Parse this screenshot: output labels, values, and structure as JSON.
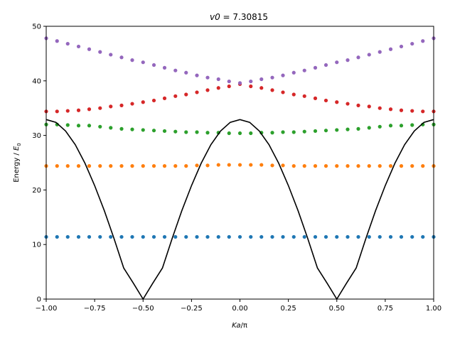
{
  "chart_data": {
    "type": "scatter",
    "title": "v0 = 7.30815",
    "title_parts": {
      "var": "v0",
      "rest": " = 7.30815"
    },
    "xlabel": "Ka/π",
    "xlabel_parts": {
      "ka": "Ka",
      "rest": "/π"
    },
    "ylabel": "Energy / E0",
    "ylabel_parts": {
      "main": "Energy / ",
      "E": "E",
      "sub": "0"
    },
    "xlim": [
      -1.0,
      1.0
    ],
    "ylim": [
      0,
      50
    ],
    "xticks": [
      -1.0,
      -0.75,
      -0.5,
      -0.25,
      0.0,
      0.25,
      0.5,
      0.75,
      1.0
    ],
    "xtick_labels": [
      "−1.00",
      "−0.75",
      "−0.50",
      "−0.25",
      "0.00",
      "0.25",
      "0.50",
      "0.75",
      "1.00"
    ],
    "yticks": [
      0,
      10,
      20,
      30,
      40,
      50
    ],
    "ytick_labels": [
      "0",
      "10",
      "20",
      "30",
      "40",
      "50"
    ],
    "grid": false,
    "series": [
      {
        "color": "#1f77b4",
        "points": [
          [
            -1.0,
            11.4
          ],
          [
            -0.944,
            11.4
          ],
          [
            -0.889,
            11.4
          ],
          [
            -0.833,
            11.4
          ],
          [
            -0.778,
            11.4
          ],
          [
            -0.722,
            11.4
          ],
          [
            -0.667,
            11.4
          ],
          [
            -0.611,
            11.4
          ],
          [
            -0.556,
            11.4
          ],
          [
            -0.5,
            11.4
          ],
          [
            -0.444,
            11.4
          ],
          [
            -0.389,
            11.4
          ],
          [
            -0.333,
            11.4
          ],
          [
            -0.278,
            11.4
          ],
          [
            -0.222,
            11.4
          ],
          [
            -0.167,
            11.4
          ],
          [
            -0.111,
            11.4
          ],
          [
            -0.056,
            11.4
          ],
          [
            0.0,
            11.4
          ],
          [
            0.056,
            11.4
          ],
          [
            0.111,
            11.4
          ],
          [
            0.167,
            11.4
          ],
          [
            0.222,
            11.4
          ],
          [
            0.278,
            11.4
          ],
          [
            0.333,
            11.4
          ],
          [
            0.389,
            11.4
          ],
          [
            0.444,
            11.4
          ],
          [
            0.5,
            11.4
          ],
          [
            0.556,
            11.4
          ],
          [
            0.611,
            11.4
          ],
          [
            0.667,
            11.4
          ],
          [
            0.722,
            11.4
          ],
          [
            0.778,
            11.4
          ],
          [
            0.833,
            11.4
          ],
          [
            0.889,
            11.4
          ],
          [
            0.944,
            11.4
          ],
          [
            1.0,
            11.4
          ]
        ]
      },
      {
        "color": "#ff7f0e",
        "points": [
          [
            -1.0,
            24.4
          ],
          [
            -0.944,
            24.4
          ],
          [
            -0.889,
            24.4
          ],
          [
            -0.833,
            24.4
          ],
          [
            -0.778,
            24.4
          ],
          [
            -0.722,
            24.4
          ],
          [
            -0.667,
            24.4
          ],
          [
            -0.611,
            24.4
          ],
          [
            -0.556,
            24.4
          ],
          [
            -0.5,
            24.4
          ],
          [
            -0.444,
            24.4
          ],
          [
            -0.389,
            24.4
          ],
          [
            -0.333,
            24.4
          ],
          [
            -0.278,
            24.4
          ],
          [
            -0.222,
            24.5
          ],
          [
            -0.167,
            24.5
          ],
          [
            -0.111,
            24.6
          ],
          [
            -0.056,
            24.6
          ],
          [
            0.0,
            24.6
          ],
          [
            0.056,
            24.6
          ],
          [
            0.111,
            24.6
          ],
          [
            0.167,
            24.5
          ],
          [
            0.222,
            24.5
          ],
          [
            0.278,
            24.4
          ],
          [
            0.333,
            24.4
          ],
          [
            0.389,
            24.4
          ],
          [
            0.444,
            24.4
          ],
          [
            0.5,
            24.4
          ],
          [
            0.556,
            24.4
          ],
          [
            0.611,
            24.4
          ],
          [
            0.667,
            24.4
          ],
          [
            0.722,
            24.4
          ],
          [
            0.778,
            24.4
          ],
          [
            0.833,
            24.4
          ],
          [
            0.889,
            24.4
          ],
          [
            0.944,
            24.4
          ],
          [
            1.0,
            24.4
          ]
        ]
      },
      {
        "color": "#2ca02c",
        "points": [
          [
            -1.0,
            32.0
          ],
          [
            -0.944,
            32.0
          ],
          [
            -0.889,
            31.9
          ],
          [
            -0.833,
            31.8
          ],
          [
            -0.778,
            31.8
          ],
          [
            -0.722,
            31.6
          ],
          [
            -0.667,
            31.4
          ],
          [
            -0.611,
            31.2
          ],
          [
            -0.556,
            31.1
          ],
          [
            -0.5,
            31.0
          ],
          [
            -0.444,
            30.9
          ],
          [
            -0.389,
            30.8
          ],
          [
            -0.333,
            30.7
          ],
          [
            -0.278,
            30.6
          ],
          [
            -0.222,
            30.6
          ],
          [
            -0.167,
            30.5
          ],
          [
            -0.111,
            30.5
          ],
          [
            -0.056,
            30.4
          ],
          [
            0.0,
            30.4
          ],
          [
            0.056,
            30.4
          ],
          [
            0.111,
            30.5
          ],
          [
            0.167,
            30.5
          ],
          [
            0.222,
            30.6
          ],
          [
            0.278,
            30.6
          ],
          [
            0.333,
            30.7
          ],
          [
            0.389,
            30.8
          ],
          [
            0.444,
            30.9
          ],
          [
            0.5,
            31.0
          ],
          [
            0.556,
            31.1
          ],
          [
            0.611,
            31.2
          ],
          [
            0.667,
            31.4
          ],
          [
            0.722,
            31.6
          ],
          [
            0.778,
            31.8
          ],
          [
            0.833,
            31.8
          ],
          [
            0.889,
            31.9
          ],
          [
            0.944,
            32.0
          ],
          [
            1.0,
            32.0
          ]
        ]
      },
      {
        "color": "#d62728",
        "points": [
          [
            -1.0,
            34.4
          ],
          [
            -0.944,
            34.4
          ],
          [
            -0.889,
            34.5
          ],
          [
            -0.833,
            34.6
          ],
          [
            -0.778,
            34.8
          ],
          [
            -0.722,
            35.0
          ],
          [
            -0.667,
            35.3
          ],
          [
            -0.611,
            35.5
          ],
          [
            -0.556,
            35.8
          ],
          [
            -0.5,
            36.1
          ],
          [
            -0.444,
            36.4
          ],
          [
            -0.389,
            36.8
          ],
          [
            -0.333,
            37.2
          ],
          [
            -0.278,
            37.5
          ],
          [
            -0.222,
            37.9
          ],
          [
            -0.167,
            38.3
          ],
          [
            -0.111,
            38.7
          ],
          [
            -0.056,
            39.0
          ],
          [
            0.0,
            39.4
          ],
          [
            0.056,
            39.0
          ],
          [
            0.111,
            38.7
          ],
          [
            0.167,
            38.3
          ],
          [
            0.222,
            37.9
          ],
          [
            0.278,
            37.5
          ],
          [
            0.333,
            37.2
          ],
          [
            0.389,
            36.8
          ],
          [
            0.444,
            36.4
          ],
          [
            0.5,
            36.1
          ],
          [
            0.556,
            35.8
          ],
          [
            0.611,
            35.5
          ],
          [
            0.667,
            35.3
          ],
          [
            0.722,
            35.0
          ],
          [
            0.778,
            34.8
          ],
          [
            0.833,
            34.6
          ],
          [
            0.889,
            34.5
          ],
          [
            0.944,
            34.4
          ],
          [
            1.0,
            34.4
          ]
        ]
      },
      {
        "color": "#9467bd",
        "points": [
          [
            -1.0,
            47.8
          ],
          [
            -0.944,
            47.3
          ],
          [
            -0.889,
            46.8
          ],
          [
            -0.833,
            46.3
          ],
          [
            -0.778,
            45.8
          ],
          [
            -0.722,
            45.3
          ],
          [
            -0.667,
            44.8
          ],
          [
            -0.611,
            44.3
          ],
          [
            -0.556,
            43.8
          ],
          [
            -0.5,
            43.4
          ],
          [
            -0.444,
            42.9
          ],
          [
            -0.389,
            42.4
          ],
          [
            -0.333,
            41.9
          ],
          [
            -0.278,
            41.5
          ],
          [
            -0.222,
            41.0
          ],
          [
            -0.167,
            40.6
          ],
          [
            -0.111,
            40.3
          ],
          [
            -0.056,
            39.9
          ],
          [
            0.0,
            39.6
          ],
          [
            0.056,
            39.9
          ],
          [
            0.111,
            40.3
          ],
          [
            0.167,
            40.6
          ],
          [
            0.222,
            41.0
          ],
          [
            0.278,
            41.5
          ],
          [
            0.333,
            41.9
          ],
          [
            0.389,
            42.4
          ],
          [
            0.444,
            42.9
          ],
          [
            0.5,
            43.4
          ],
          [
            0.556,
            43.8
          ],
          [
            0.611,
            44.3
          ],
          [
            0.667,
            44.8
          ],
          [
            0.722,
            45.3
          ],
          [
            0.778,
            45.8
          ],
          [
            0.833,
            46.3
          ],
          [
            0.889,
            46.8
          ],
          [
            0.944,
            47.3
          ],
          [
            1.0,
            47.8
          ]
        ]
      }
    ],
    "curve": {
      "color": "#000000",
      "points": [
        [
          -1.0,
          32.9
        ],
        [
          -0.95,
          32.4
        ],
        [
          -0.9,
          30.8
        ],
        [
          -0.85,
          28.3
        ],
        [
          -0.8,
          24.9
        ],
        [
          -0.75,
          20.8
        ],
        [
          -0.7,
          16.2
        ],
        [
          -0.65,
          11.1
        ],
        [
          -0.6,
          5.7
        ],
        [
          -0.55,
          2.9
        ],
        [
          -0.5,
          0.0
        ],
        [
          -0.45,
          2.9
        ],
        [
          -0.4,
          5.7
        ],
        [
          -0.35,
          11.1
        ],
        [
          -0.3,
          16.2
        ],
        [
          -0.25,
          20.8
        ],
        [
          -0.2,
          24.9
        ],
        [
          -0.15,
          28.3
        ],
        [
          -0.1,
          30.8
        ],
        [
          -0.05,
          32.4
        ],
        [
          0.0,
          32.9
        ],
        [
          0.05,
          32.4
        ],
        [
          0.1,
          30.8
        ],
        [
          0.15,
          28.3
        ],
        [
          0.2,
          24.9
        ],
        [
          0.25,
          20.8
        ],
        [
          0.3,
          16.2
        ],
        [
          0.35,
          11.1
        ],
        [
          0.4,
          5.7
        ],
        [
          0.45,
          2.9
        ],
        [
          0.5,
          0.0
        ],
        [
          0.55,
          2.9
        ],
        [
          0.6,
          5.7
        ],
        [
          0.65,
          11.1
        ],
        [
          0.7,
          16.2
        ],
        [
          0.75,
          20.8
        ],
        [
          0.8,
          24.9
        ],
        [
          0.85,
          28.3
        ],
        [
          0.9,
          30.8
        ],
        [
          0.95,
          32.4
        ],
        [
          1.0,
          32.9
        ]
      ]
    }
  }
}
